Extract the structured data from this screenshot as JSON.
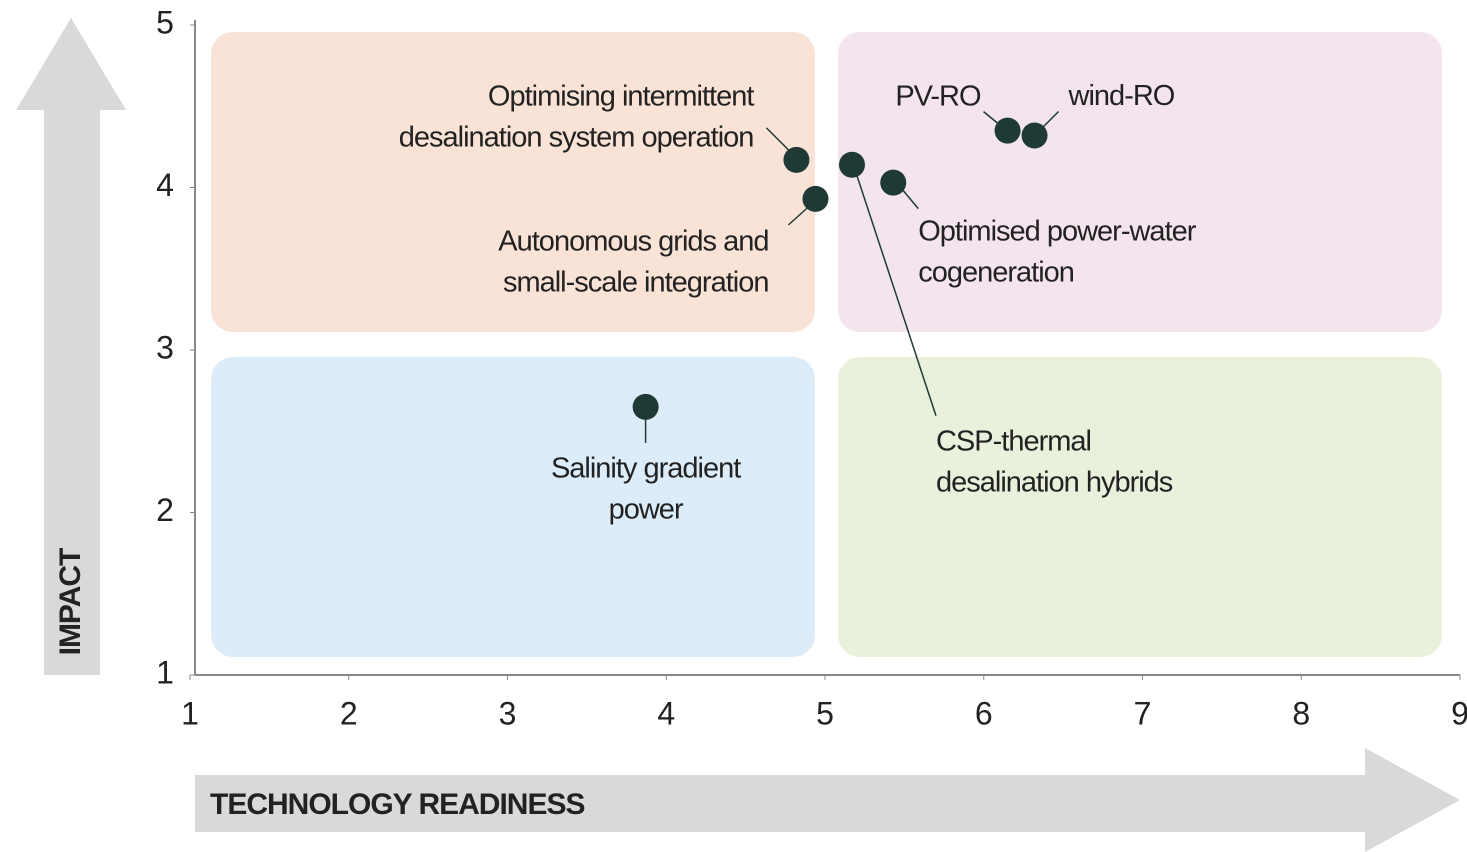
{
  "chart_data": {
    "type": "scatter",
    "xlabel": "TECHNOLOGY READINESS",
    "ylabel": "IMPACT",
    "xlim": [
      1,
      9
    ],
    "ylim": [
      1,
      5
    ],
    "xticks": [
      1,
      2,
      3,
      4,
      5,
      6,
      7,
      8,
      9
    ],
    "yticks": [
      1,
      2,
      3,
      4,
      5
    ],
    "color": "#1f3a34",
    "x": [
      4.82,
      4.94,
      5.17,
      5.43,
      6.15,
      6.32,
      3.87
    ],
    "values": [
      4.17,
      3.93,
      4.14,
      4.03,
      4.35,
      4.32,
      2.65
    ],
    "point_labels": [
      [
        "Optimising intermittent",
        "desalination system operation"
      ],
      [
        "Autonomous grids and",
        "small-scale integration"
      ],
      [
        "CSP-thermal",
        "desalination hybrids"
      ],
      [
        "Optimised power-water",
        "cogeneration"
      ],
      [
        "PV-RO"
      ],
      [
        "wind-RO"
      ],
      [
        "Salinity gradient",
        "power"
      ]
    ]
  }
}
